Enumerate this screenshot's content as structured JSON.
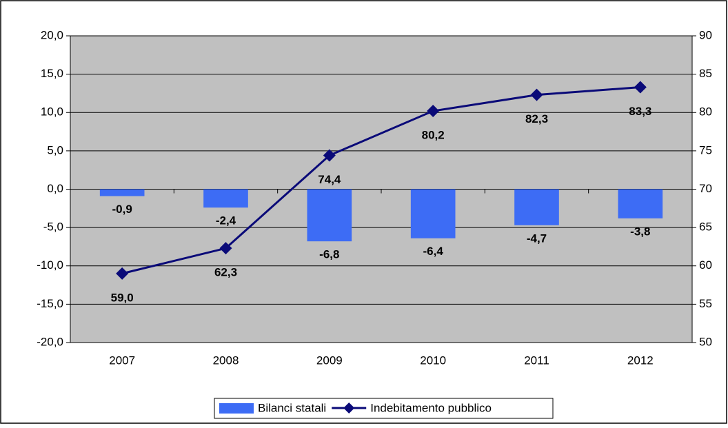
{
  "chart_data": {
    "type": "bar_line",
    "categories": [
      "2007",
      "2008",
      "2009",
      "2010",
      "2011",
      "2012"
    ],
    "series": [
      {
        "name": "Bilanci statali",
        "type": "bar",
        "color": "#3d6cf5",
        "label_color": "#4a7ef7",
        "values": [
          -0.9,
          -2.4,
          -6.8,
          -6.4,
          -4.7,
          -3.8
        ],
        "value_labels": [
          "-0,9",
          "-2,4",
          "-6,8",
          "-6,4",
          "-4,7",
          "-3,8"
        ]
      },
      {
        "name": "Indebitamento pubblico",
        "type": "line",
        "axis": "y2",
        "color": "#0a0a78",
        "values": [
          59.0,
          62.3,
          74.4,
          80.2,
          82.3,
          83.3
        ],
        "value_labels": [
          "59,0",
          "62,3",
          "74,4",
          "80,2",
          "82,3",
          "83,3"
        ]
      }
    ],
    "ylim": [
      -20,
      20
    ],
    "yticks": [
      {
        "value": -20,
        "label": "-20,0"
      },
      {
        "value": -15,
        "label": "-15,0"
      },
      {
        "value": -10,
        "label": "-10,0"
      },
      {
        "value": -5,
        "label": "-5,0"
      },
      {
        "value": 0,
        "label": "0,0"
      },
      {
        "value": 5,
        "label": "5,0"
      },
      {
        "value": 10,
        "label": "10,0"
      },
      {
        "value": 15,
        "label": "15,0"
      },
      {
        "value": 20,
        "label": "20,0"
      }
    ],
    "y2lim": [
      50,
      90
    ],
    "y2ticks": [
      50,
      55,
      60,
      65,
      70,
      75,
      80,
      85,
      90
    ],
    "grid": true,
    "legend": "bottom"
  }
}
